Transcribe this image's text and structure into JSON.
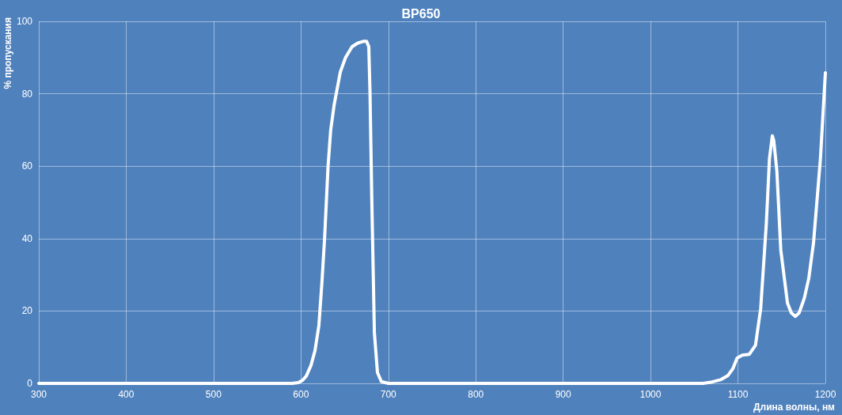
{
  "chart_data": {
    "type": "line",
    "title": "BP650",
    "xlabel": "Длина волны, нм",
    "ylabel": "% пропускания",
    "series": [
      {
        "color": "#ffffff",
        "x": [
          300,
          400,
          500,
          580,
          590,
          597,
          601.5,
          606,
          611.5,
          616,
          620.5,
          624,
          627,
          631,
          634,
          638,
          645,
          651,
          658.5,
          665,
          672,
          675,
          677.6,
          679,
          681,
          684,
          687.5,
          692,
          700,
          800,
          900,
          1000,
          1060,
          1070.5,
          1080,
          1088.6,
          1094,
          1099,
          1105,
          1112.8,
          1120,
          1126,
          1132.4,
          1136,
          1139.3,
          1141,
          1144.5,
          1149,
          1156.6,
          1161,
          1165.6,
          1170,
          1176,
          1181,
          1186.5,
          1194.3,
          1200
        ],
        "values": [
          0,
          0,
          0,
          0,
          0,
          0.2,
          0.8,
          2,
          5,
          9,
          16,
          28,
          40,
          60,
          70,
          77,
          86,
          90,
          93,
          94,
          94.5,
          94.5,
          93,
          80,
          51,
          14,
          3,
          0.5,
          0,
          0,
          0,
          0,
          0,
          0.4,
          1,
          2.2,
          4,
          7,
          7.8,
          8,
          10.5,
          20.7,
          44,
          62,
          68.4,
          67,
          58.6,
          36.8,
          22.2,
          19.5,
          18.5,
          19.5,
          23.6,
          29,
          39,
          62,
          85.8
        ]
      }
    ],
    "xlim": [
      300,
      1200
    ],
    "xticks": [
      300,
      400,
      500,
      600,
      700,
      800,
      900,
      1000,
      1100,
      1200
    ],
    "ylim": [
      0,
      100
    ],
    "yticks": [
      0,
      20,
      40,
      60,
      80,
      100
    ],
    "grid": true,
    "marker": "none",
    "line_style": "solid"
  }
}
